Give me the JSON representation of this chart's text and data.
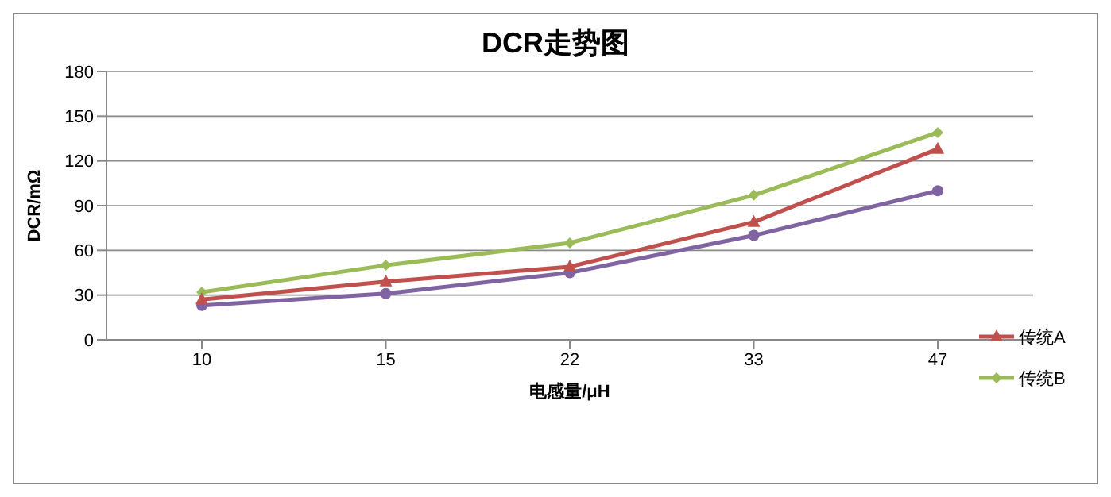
{
  "chart_data": {
    "type": "line",
    "title": "DCR走势图",
    "xlabel": "电感量/μH",
    "ylabel": "DCR/mΩ",
    "categories": [
      "10",
      "15",
      "22",
      "33",
      "47"
    ],
    "series": [
      {
        "name": "传统A",
        "color": "#c0504d",
        "marker": "triangle",
        "values": [
          27,
          39,
          49,
          79,
          128
        ]
      },
      {
        "name": "传统B",
        "color": "#9bbb59",
        "marker": "diamond",
        "values": [
          32,
          50,
          65,
          97,
          139
        ]
      },
      {
        "color": "#8064a2",
        "marker": "circle",
        "values": [
          23,
          31,
          45,
          70,
          100
        ]
      }
    ],
    "ylim": [
      0,
      180
    ],
    "yticks": [
      0,
      30,
      60,
      90,
      120,
      150,
      180
    ],
    "grid": "y",
    "legend": "right"
  }
}
